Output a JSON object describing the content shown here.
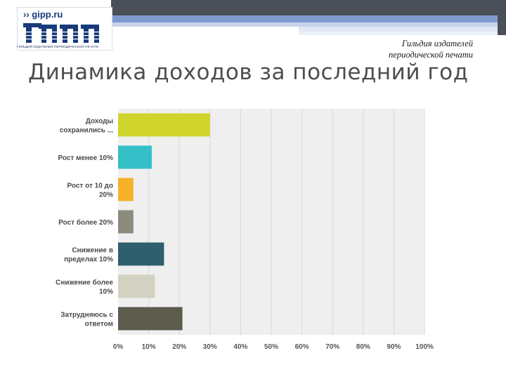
{
  "header": {
    "logo_url_text": "›› gipp.ru",
    "logo_caption": "ГИЛЬДИЯ ИЗДАТЕЛЕЙ ПЕРИОДИЧЕСКОЙ ПЕЧАТИ",
    "org_line1": "Гильдия издателей",
    "org_line2": "периодической печати"
  },
  "title": "Динамика доходов за последний год",
  "chart_data": {
    "type": "bar",
    "orientation": "horizontal",
    "categories": [
      [
        "Доходы",
        "сохранились ..."
      ],
      [
        "Рост менее 10%"
      ],
      [
        "Рост от 10 до",
        "20%"
      ],
      [
        "Рост более 20%"
      ],
      [
        "Снижение в",
        "пределах 10%"
      ],
      [
        "Снижение более",
        "10%"
      ],
      [
        "Затрудняюсь с",
        "ответом"
      ]
    ],
    "values": [
      30,
      11,
      5,
      5,
      15,
      12,
      21
    ],
    "colors": [
      "#cfd52c",
      "#34c0c6",
      "#f6b12a",
      "#8c8b7c",
      "#2f5f6d",
      "#d3d1c1",
      "#5d5b4c"
    ],
    "x_ticks": [
      "0%",
      "10%",
      "20%",
      "30%",
      "40%",
      "50%",
      "60%",
      "70%",
      "80%",
      "90%",
      "100%"
    ],
    "xlim": [
      0,
      100
    ],
    "grid": true,
    "legend": "none",
    "plot_background": "#efefef"
  }
}
